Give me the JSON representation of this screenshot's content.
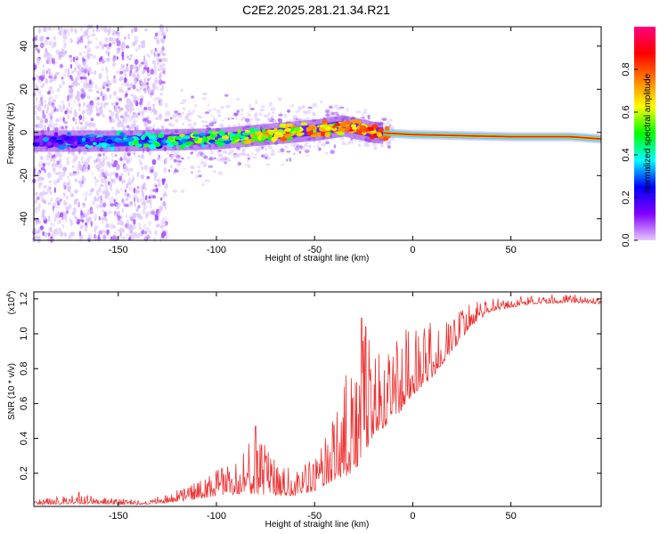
{
  "title": "C2E2.2025.281.21.34.R21",
  "chart_data": [
    {
      "type": "heatmap",
      "title": "C2E2.2025.281.21.34.R21",
      "xlabel": "Height of straight line (km)",
      "ylabel": "Frequency (Hz)",
      "xlim": [
        -193,
        96
      ],
      "ylim": [
        -50,
        49
      ],
      "xticks": [
        -150,
        -100,
        -50,
        0,
        50
      ],
      "yticks": [
        -40,
        -20,
        0,
        20,
        40
      ],
      "ridge_points": [
        {
          "x": -190,
          "y": -4
        },
        {
          "x": -150,
          "y": -4
        },
        {
          "x": -100,
          "y": -3
        },
        {
          "x": -75,
          "y": -1
        },
        {
          "x": -50,
          "y": 1
        },
        {
          "x": -35,
          "y": 3
        },
        {
          "x": -20,
          "y": 0
        },
        {
          "x": 0,
          "y": -1
        },
        {
          "x": 50,
          "y": -2
        },
        {
          "x": 80,
          "y": -2
        },
        {
          "x": 96,
          "y": -3
        }
      ],
      "colorbar": {
        "label": "Normalized spectral amplitude",
        "range": [
          0,
          1
        ],
        "ticks": [
          0.0,
          0.2,
          0.4,
          0.6,
          0.8
        ],
        "tick_labels": [
          "0.0",
          "0.2",
          "0.4",
          "0.6",
          "0.8"
        ],
        "colors": [
          "#e8c8ff",
          "#8000ff",
          "#0000ff",
          "#00ffff",
          "#00ff00",
          "#ffff00",
          "#ff8000",
          "#ff0000",
          "#ff0080"
        ]
      }
    },
    {
      "type": "line",
      "title": "",
      "xlabel": "Height of straight line (km)",
      "ylabel": "SNR (10 * v/v)",
      "exponent_label": "(x10",
      "exponent_power": "4",
      "exponent_close": ")",
      "xlim": [
        -193,
        96
      ],
      "ylim": [
        0.01,
        1.24
      ],
      "xticks": [
        -150,
        -100,
        -50,
        0,
        50
      ],
      "yticks": [
        0.2,
        0.4,
        0.6,
        0.8,
        1.0,
        1.2
      ],
      "ytick_labels": [
        "0.2",
        "0.4",
        "0.6",
        "0.8",
        "1.0",
        "1.2"
      ],
      "color": "#ee3333",
      "envelope": {
        "x": [
          -193,
          -170,
          -140,
          -125,
          -110,
          -100,
          -90,
          -80,
          -70,
          -60,
          -50,
          -40,
          -30,
          -25,
          -20,
          -10,
          0,
          10,
          20,
          30,
          40,
          60,
          80,
          96
        ],
        "base": [
          0.02,
          0.025,
          0.02,
          0.03,
          0.05,
          0.07,
          0.08,
          0.08,
          0.07,
          0.07,
          0.1,
          0.16,
          0.2,
          0.3,
          0.42,
          0.5,
          0.65,
          0.75,
          0.9,
          1.05,
          1.13,
          1.17,
          1.18,
          1.17
        ],
        "peak": [
          0.05,
          0.08,
          0.05,
          0.08,
          0.15,
          0.22,
          0.3,
          0.42,
          0.3,
          0.2,
          0.3,
          0.52,
          0.95,
          1.05,
          0.95,
          1.0,
          1.05,
          1.08,
          1.12,
          1.18,
          1.2,
          1.22,
          1.23,
          1.2
        ]
      },
      "notable_spikes": [
        {
          "x": -170,
          "y": 0.09
        },
        {
          "x": -80,
          "y": 0.47
        },
        {
          "x": -26,
          "y": 1.09
        },
        {
          "x": -24,
          "y": 1.04
        }
      ]
    }
  ]
}
